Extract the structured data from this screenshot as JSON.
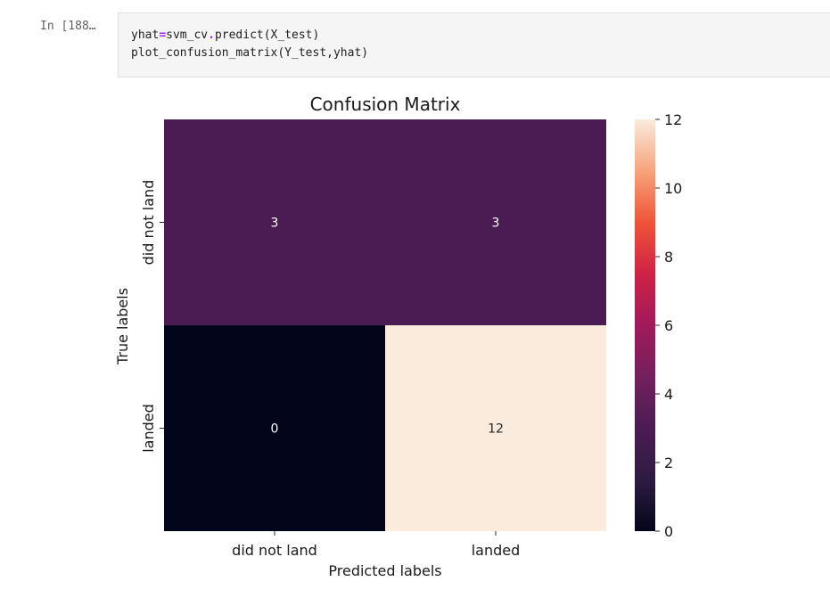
{
  "cell": {
    "prompt": "In [188…",
    "code_line1": {
      "a": "yhat",
      "op1": "=",
      "b": "svm_cv",
      "op2": ".",
      "c": "predict(X_test)"
    },
    "code_line2": "plot_confusion_matrix(Y_test,yhat)"
  },
  "chart_data": {
    "type": "heatmap",
    "title": "Confusion Matrix",
    "xlabel": "Predicted labels",
    "ylabel": "True labels",
    "x_categories": [
      "did not land",
      "landed"
    ],
    "y_categories": [
      "did not land",
      "landed"
    ],
    "values": [
      [
        3,
        3
      ],
      [
        0,
        12
      ]
    ],
    "colorbar": {
      "min": 0,
      "max": 12,
      "ticks": [
        "0",
        "2",
        "4",
        "6",
        "8",
        "10",
        "12"
      ]
    },
    "colormap": "rocket",
    "colors": {
      "low": "#03051a",
      "mid": "#611f53",
      "high": "#faebdd"
    }
  }
}
